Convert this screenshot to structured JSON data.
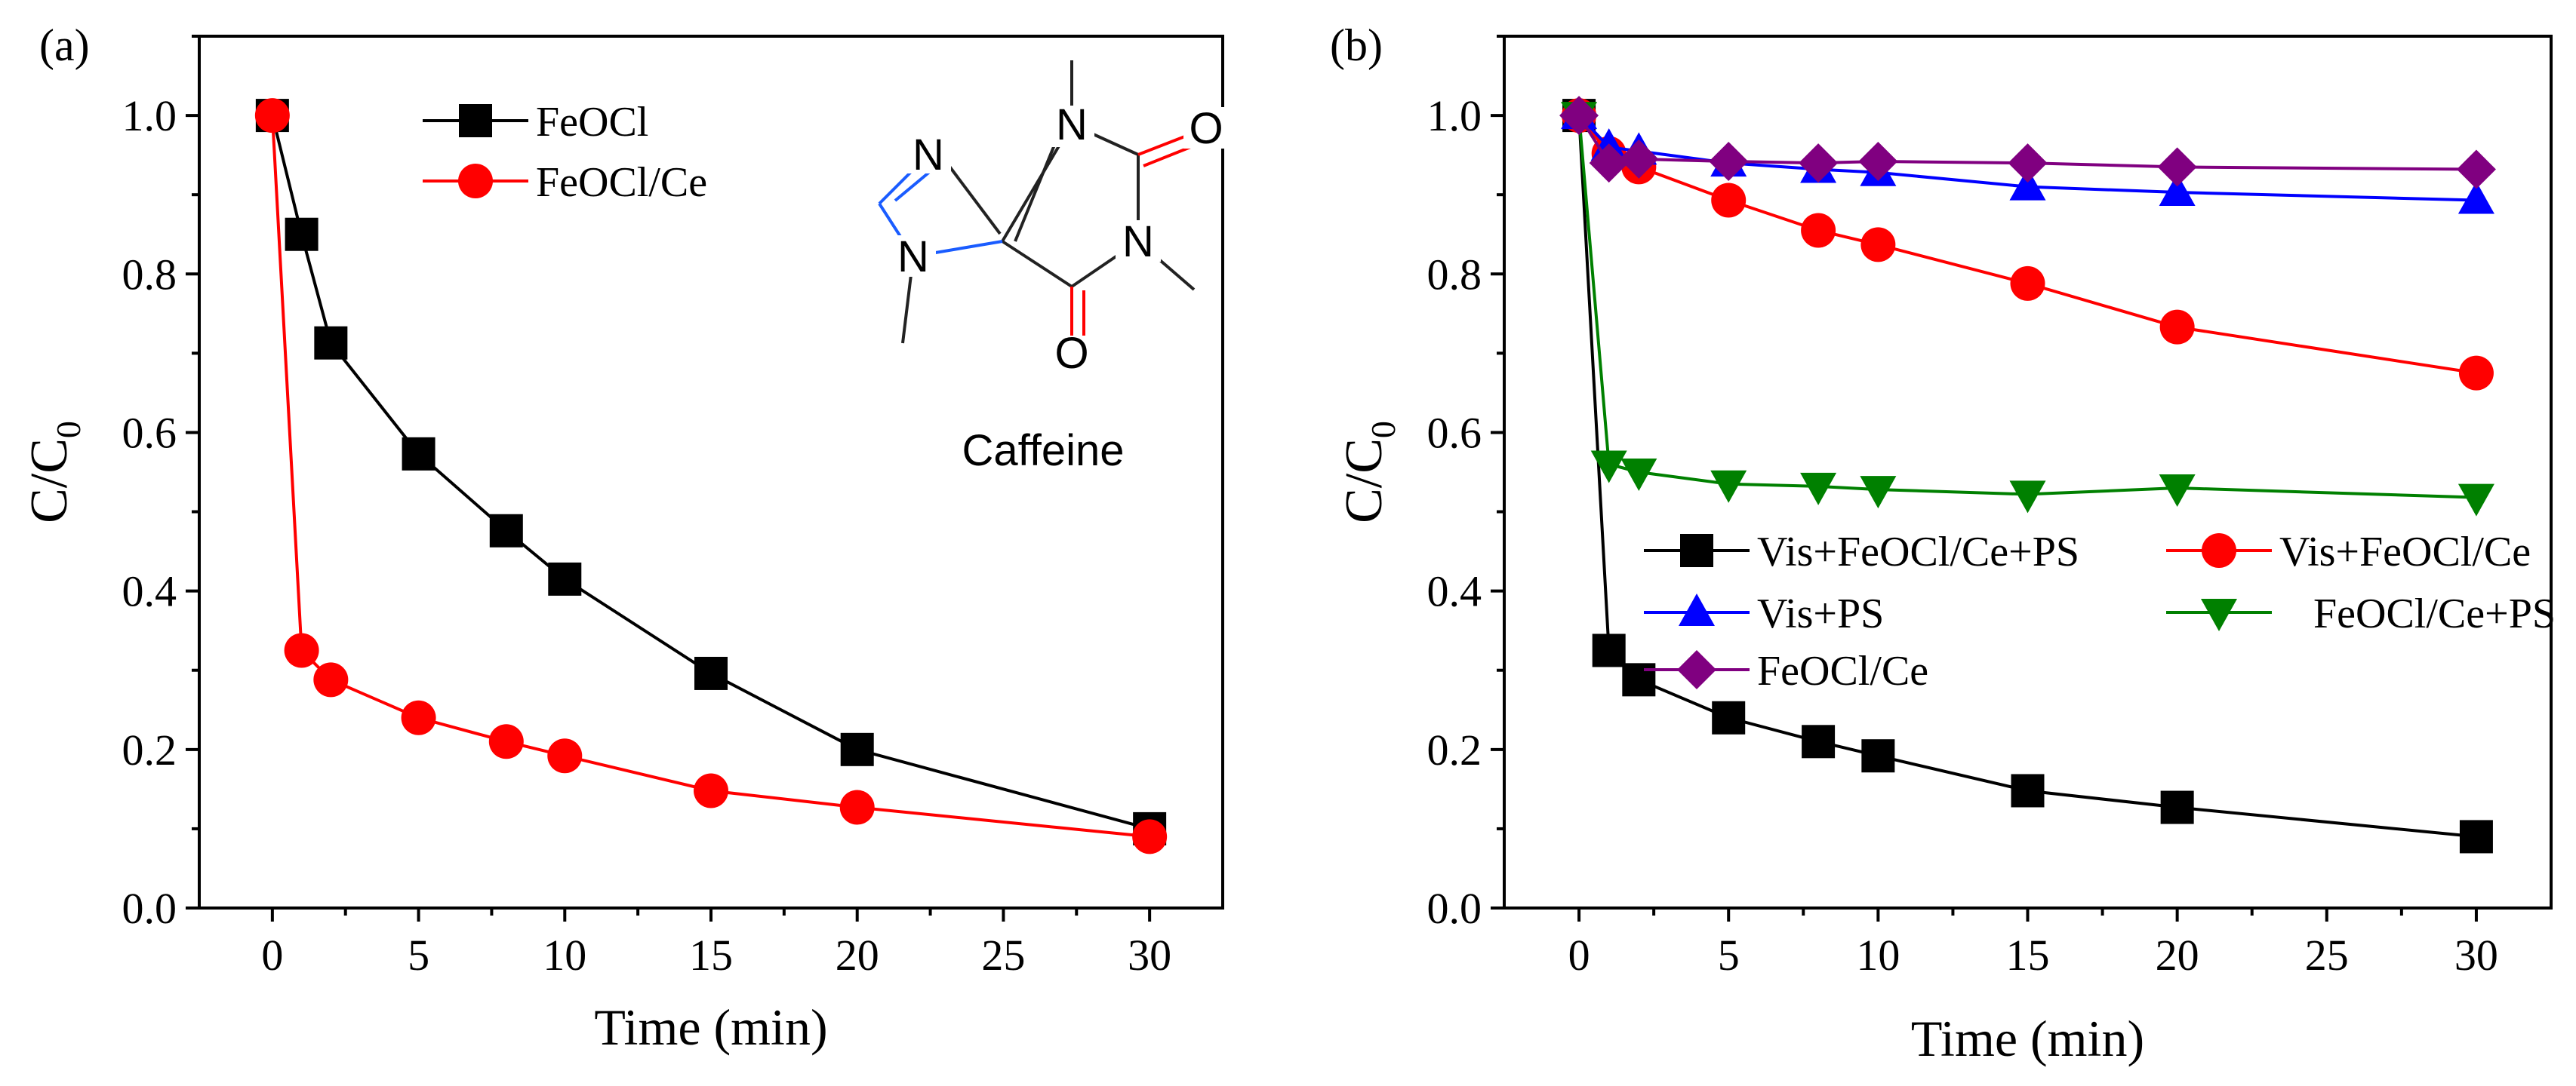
{
  "chart_data": [
    {
      "panel_label": "(a)",
      "type": "line",
      "xlabel": "Time (min)",
      "ylabel": "C/C",
      "ylabel_sub": "0",
      "xlim": [
        -2.5,
        32.5
      ],
      "ylim": [
        0,
        1.1
      ],
      "xticks": [
        0,
        5,
        10,
        15,
        20,
        25,
        30
      ],
      "yticks": [
        0.0,
        0.2,
        0.4,
        0.6,
        0.8,
        1.0
      ],
      "x": [
        0,
        1,
        2,
        5,
        8,
        10,
        15,
        20,
        30
      ],
      "series": [
        {
          "name": "FeOCl",
          "color": "#000000",
          "marker": "square",
          "values": [
            1.0,
            0.85,
            0.713,
            0.573,
            0.476,
            0.415,
            0.296,
            0.2,
            0.1
          ]
        },
        {
          "name": "FeOCl/Ce",
          "color": "#ff0000",
          "marker": "circle",
          "values": [
            1.0,
            0.325,
            0.288,
            0.24,
            0.21,
            0.192,
            0.148,
            0.127,
            0.09
          ]
        }
      ],
      "inset": {
        "caption": "Caffeine",
        "atoms": {
          "n1": "N",
          "n3": "N",
          "n7": "N",
          "n9": "N",
          "o2": "O",
          "o6": "O"
        },
        "colors": {
          "nitrogen": "#1a5cff",
          "oxygen": "#ff0000",
          "bond": "#222222"
        }
      }
    },
    {
      "panel_label": "(b)",
      "type": "line",
      "xlabel": "Time (min)",
      "ylabel": "C/C",
      "ylabel_sub": "0",
      "xlim": [
        -2.5,
        32.5
      ],
      "ylim": [
        0,
        1.1
      ],
      "xticks": [
        0,
        5,
        10,
        15,
        20,
        25,
        30
      ],
      "yticks": [
        0.0,
        0.2,
        0.4,
        0.6,
        0.8,
        1.0
      ],
      "x": [
        0,
        1,
        2,
        5,
        8,
        10,
        15,
        20,
        30
      ],
      "series": [
        {
          "name": "Vis+FeOCl/Ce+PS",
          "color": "#000000",
          "marker": "square",
          "values": [
            1.0,
            0.325,
            0.288,
            0.24,
            0.21,
            0.192,
            0.148,
            0.127,
            0.09
          ]
        },
        {
          "name": "Vis+FeOCl/Ce",
          "color": "#ff0000",
          "marker": "circle",
          "values": [
            1.0,
            0.952,
            0.935,
            0.893,
            0.855,
            0.837,
            0.788,
            0.733,
            0.675
          ]
        },
        {
          "name": "Vis+PS",
          "color": "#0000ff",
          "marker": "triangle-up",
          "values": [
            1.0,
            0.96,
            0.955,
            0.94,
            0.932,
            0.928,
            0.91,
            0.903,
            0.893
          ]
        },
        {
          "name": "FeOCl/Ce+PS",
          "color": "#008000",
          "marker": "triangle-down",
          "values": [
            1.0,
            0.56,
            0.55,
            0.535,
            0.532,
            0.528,
            0.522,
            0.53,
            0.518
          ]
        },
        {
          "name": "FeOCl/Ce",
          "color": "#800080",
          "marker": "diamond",
          "values": [
            1.0,
            0.94,
            0.945,
            0.942,
            0.94,
            0.942,
            0.94,
            0.935,
            0.932
          ]
        }
      ]
    }
  ]
}
